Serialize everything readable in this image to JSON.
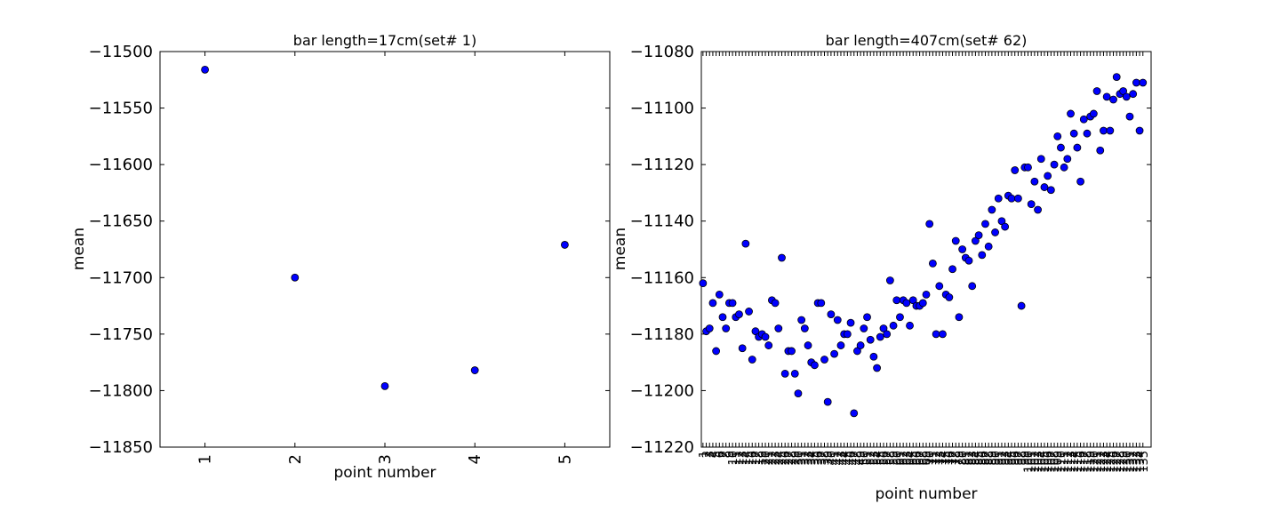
{
  "chart_data": [
    {
      "type": "scatter",
      "title": "bar length=17cm(set# 1)",
      "xlabel": "point number",
      "ylabel": "mean",
      "xlim": [
        0.5,
        5.5
      ],
      "ylim": [
        -11850,
        -11500
      ],
      "xticks": [
        1,
        2,
        3,
        4,
        5
      ],
      "xtick_labels": [
        "1",
        "2",
        "3",
        "4",
        "5"
      ],
      "yticks": [
        -11850,
        -11800,
        -11750,
        -11700,
        -11650,
        -11600,
        -11550,
        -11500
      ],
      "ytick_labels": [
        "−11850",
        "−11800",
        "−11750",
        "−11700",
        "−11650",
        "−11600",
        "−11550",
        "−11500"
      ],
      "marker_color": "#0000ff",
      "grid": false,
      "points": [
        {
          "x": 1,
          "y": -11516
        },
        {
          "x": 2,
          "y": -11700
        },
        {
          "x": 3,
          "y": -11796
        },
        {
          "x": 4,
          "y": -11782
        },
        {
          "x": 5,
          "y": -11671
        }
      ]
    },
    {
      "type": "scatter",
      "title": "bar length=407cm(set# 62)",
      "xlabel": "point number",
      "ylabel": "mean",
      "xlim": [
        0.5,
        137.5
      ],
      "ylim": [
        -11220,
        -11080
      ],
      "xticks_unreadable": true,
      "yticks": [
        -11220,
        -11200,
        -11180,
        -11160,
        -11140,
        -11120,
        -11100,
        -11080
      ],
      "ytick_labels": [
        "−11220",
        "−11200",
        "−11180",
        "−11160",
        "−11140",
        "−11120",
        "−11100",
        "−11080"
      ],
      "marker_color": "#0000ff",
      "grid": false,
      "y": [
        -11162,
        -11179,
        -11178,
        -11169,
        -11186,
        -11166,
        -11174,
        -11178,
        -11169,
        -11169,
        -11174,
        -11173,
        -11185,
        -11148,
        -11172,
        -11189,
        -11179,
        -11181,
        -11180,
        -11181,
        -11184,
        -11168,
        -11169,
        -11178,
        -11153,
        -11194,
        -11186,
        -11186,
        -11194,
        -11201,
        -11175,
        -11178,
        -11184,
        -11190,
        -11191,
        -11169,
        -11169,
        -11189,
        -11204,
        -11173,
        -11187,
        -11175,
        -11184,
        -11180,
        -11180,
        -11176,
        -11208,
        -11186,
        -11184,
        -11178,
        -11174,
        -11182,
        -11188,
        -11192,
        -11181,
        -11178,
        -11180,
        -11161,
        -11177,
        -11168,
        -11174,
        -11168,
        -11169,
        -11177,
        -11168,
        -11170,
        -11170,
        -11169,
        -11166,
        -11141,
        -11155,
        -11180,
        -11163,
        -11180,
        -11166,
        -11167,
        -11157,
        -11147,
        -11174,
        -11150,
        -11153,
        -11154,
        -11163,
        -11147,
        -11145,
        -11152,
        -11141,
        -11149,
        -11136,
        -11144,
        -11132,
        -11140,
        -11142,
        -11131,
        -11132,
        -11122,
        -11132,
        -11170,
        -11121,
        -11121,
        -11134,
        -11126,
        -11136,
        -11118,
        -11128,
        -11124,
        -11129,
        -11120,
        -11110,
        -11114,
        -11121,
        -11118,
        -11102,
        -11109,
        -11114,
        -11126,
        -11104,
        -11109,
        -11103,
        -11102,
        -11094,
        -11115,
        -11108,
        -11096,
        -11108,
        -11097,
        -11089,
        -11095,
        -11094,
        -11096,
        -11103,
        -11095,
        -11091,
        -11108,
        -11091
      ]
    }
  ]
}
